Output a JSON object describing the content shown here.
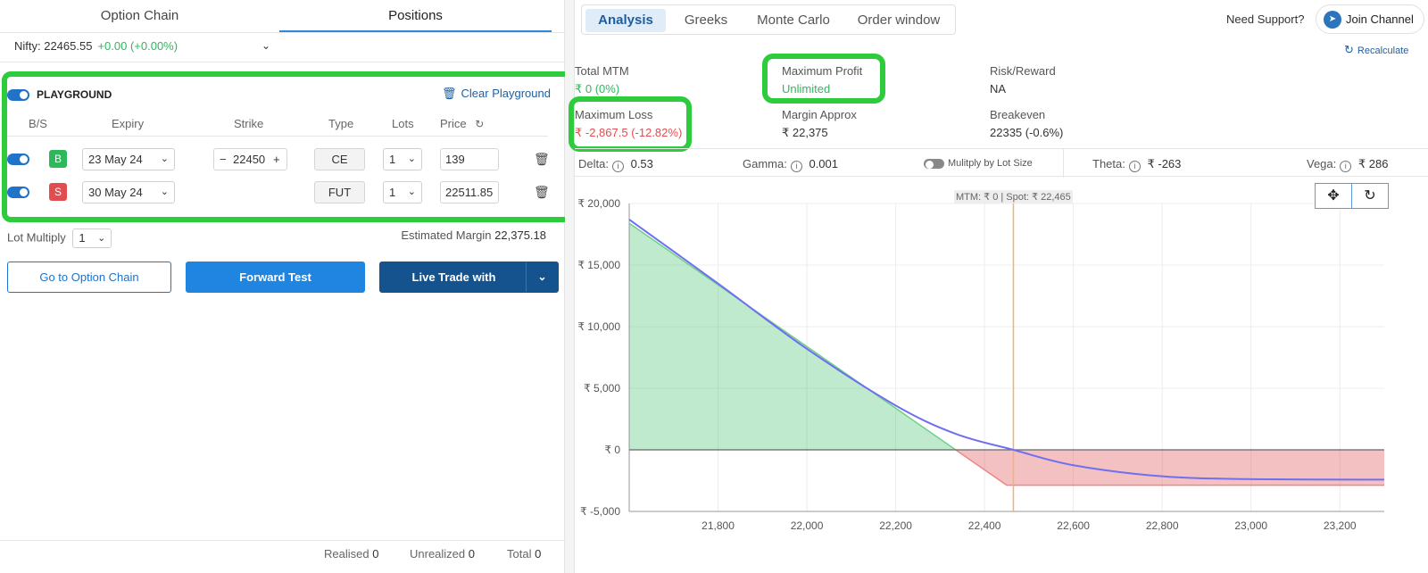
{
  "left": {
    "tabs": [
      "Option Chain",
      "Positions"
    ],
    "nifty": {
      "label": "Nifty: 22465.55",
      "change": "+0.00 (+0.00%)"
    },
    "playground": {
      "title": "PLAYGROUND",
      "clear_label": "Clear Playground",
      "columns": [
        "B/S",
        "Expiry",
        "Strike",
        "Type",
        "Lots",
        "Price"
      ],
      "rows": [
        {
          "side": "B",
          "expiry": "23 May 24",
          "strike": "22450",
          "type": "CE",
          "lots": "1",
          "price": "139"
        },
        {
          "side": "S",
          "expiry": "30 May 24",
          "strike": "",
          "type": "FUT",
          "lots": "1",
          "price": "22511.85"
        }
      ]
    },
    "lot_multiply": {
      "label": "Lot Multiply",
      "value": "1"
    },
    "estimated_margin": {
      "label": "Estimated Margin",
      "value": "22,375.18"
    },
    "buttons": {
      "go_option_chain": "Go to Option Chain",
      "forward_test": "Forward Test",
      "live_trade": "Live Trade with"
    },
    "footer": {
      "realised_label": "Realised",
      "realised": "0",
      "unrealized_label": "Unrealized",
      "unrealized": "0",
      "total_label": "Total",
      "total": "0"
    }
  },
  "right": {
    "tabs": [
      "Analysis",
      "Greeks",
      "Monte Carlo",
      "Order window"
    ],
    "support_label": "Need Support?",
    "join_label": "Join Channel",
    "recalc_label": "Recalculate",
    "stats": {
      "total_mtm": {
        "label": "Total MTM",
        "value": "₹ 0 (0%)"
      },
      "max_profit": {
        "label": "Maximum Profit",
        "value": "Unlimited"
      },
      "risk_reward": {
        "label": "Risk/Reward",
        "value": "NA"
      },
      "max_loss": {
        "label": "Maximum Loss",
        "value": "₹ -2,867.5 (-12.82%)"
      },
      "margin": {
        "label": "Margin Approx",
        "value": "₹ 22,375"
      },
      "breakeven": {
        "label": "Breakeven",
        "value": "22335 (-0.6%)"
      }
    },
    "greeks": {
      "delta": {
        "label": "Delta:",
        "value": "0.53"
      },
      "gamma": {
        "label": "Gamma:",
        "value": "0.001"
      },
      "multiply_label": "Mulitply by Lot Size",
      "theta": {
        "label": "Theta:",
        "value": "₹ -263"
      },
      "vega": {
        "label": "Vega:",
        "value": "₹ 286"
      }
    },
    "mtm_spot_label": "MTM: ₹ 0  |  Spot: ₹ 22,465"
  },
  "colors": {
    "profit": "#2eb85c",
    "loss": "#e04e50",
    "accent": "#1f73c8",
    "highlight": "#2dcc3d",
    "spot_line": "#f5b26b",
    "payoff_line": "#6f6ff0"
  },
  "chart_data": {
    "type": "area",
    "x_ticks": [
      "21,800",
      "22,000",
      "22,200",
      "22,400",
      "22,600",
      "22,800",
      "23,000",
      "23,200"
    ],
    "y_ticks": [
      "₹ 20,000",
      "₹ 15,000",
      "₹ 10,000",
      "₹ 5,000",
      "₹ 0",
      "₹ -5,000"
    ],
    "xlim": [
      21600,
      23300
    ],
    "ylim": [
      -5000,
      20000
    ],
    "spot": 22465,
    "series": [
      {
        "values_x": [
          21600,
          22335,
          22450,
          23300
        ],
        "values_y": [
          18400,
          0,
          -2867.5,
          -2867.5
        ]
      },
      {
        "values_x": [
          21600,
          21800,
          22000,
          22200,
          22335,
          22465,
          22600,
          22800,
          23000,
          23300
        ],
        "values_y": [
          18700,
          13500,
          8200,
          3600,
          1300,
          0,
          -1250,
          -2150,
          -2380,
          -2420
        ]
      }
    ]
  }
}
